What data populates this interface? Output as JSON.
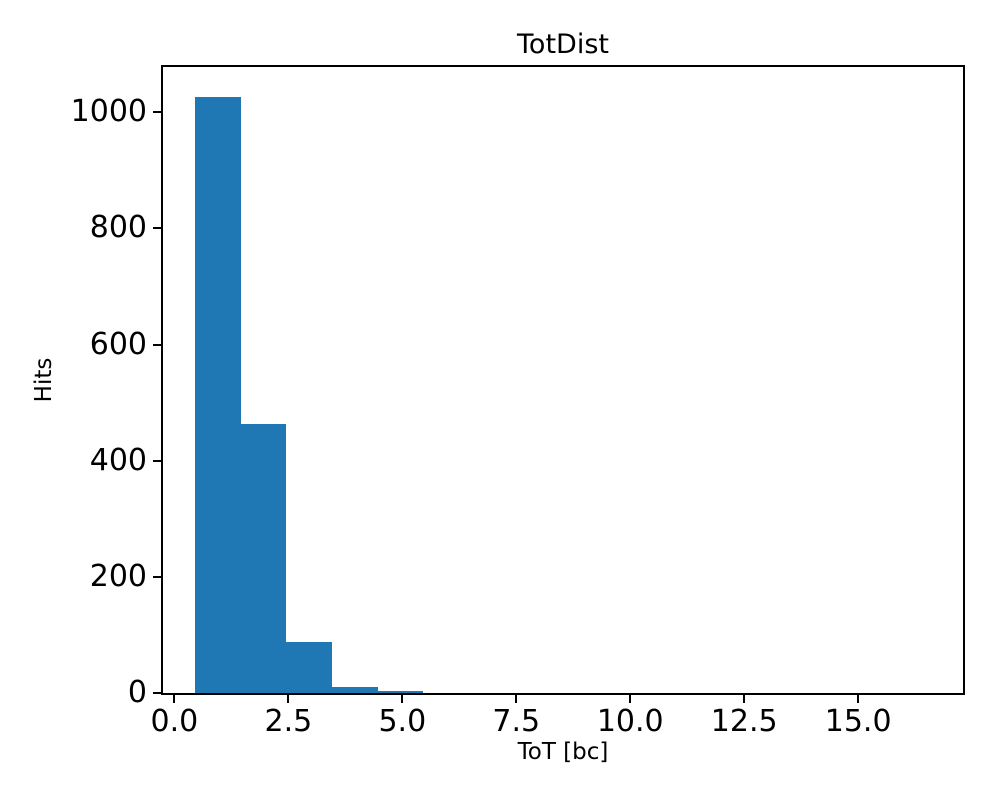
{
  "chart_data": {
    "type": "bar",
    "subtype": "histogram",
    "title": "TotDist",
    "xlabel": "ToT [bc]",
    "ylabel": "Hits",
    "bar_color": "#1f77b4",
    "bin_edges": [
      0.5,
      1.5,
      2.5,
      3.5,
      4.5,
      5.5
    ],
    "counts": [
      1026,
      464,
      88,
      10,
      4
    ],
    "xticks": {
      "values": [
        0,
        2.5,
        5,
        7.5,
        10,
        12.5,
        15
      ],
      "labels": [
        "0.0",
        "2.5",
        "5.0",
        "7.5",
        "10.0",
        "12.5",
        "15.0"
      ]
    },
    "yticks": {
      "values": [
        0,
        200,
        400,
        600,
        800,
        1000
      ],
      "labels": [
        "0",
        "200",
        "400",
        "600",
        "800",
        "1000"
      ]
    },
    "xlim": [
      -0.25,
      17.3
    ],
    "ylim": [
      0,
      1078
    ],
    "grid": false,
    "legend_position": "none",
    "text_color": "#000000",
    "background_color": "#ffffff"
  }
}
